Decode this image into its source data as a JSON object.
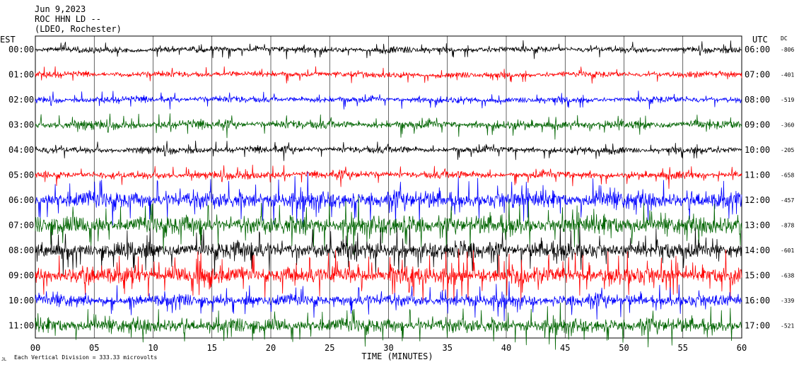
{
  "header": {
    "date": "Jun 9,2023",
    "station": "ROC HHN LD --",
    "network": "(LDEO, Rochester)"
  },
  "axes": {
    "left_label": "EST",
    "right_label": "UTC",
    "dc_label": "DC",
    "x_label": "TIME (MINUTES)",
    "x_ticks": [
      "00",
      "05",
      "10",
      "15",
      "20",
      "25",
      "30",
      "35",
      "40",
      "45",
      "50",
      "55",
      "60"
    ],
    "footer_text": "Each Vertical Division =  333.33 microvolts",
    "footer_mark": "JL"
  },
  "colors": {
    "black": "#000000",
    "red": "#ff0000",
    "blue": "#0000ff",
    "green": "#006400"
  },
  "chart_data": {
    "type": "line",
    "title": "",
    "xlabel": "TIME (MINUTES)",
    "xlim": [
      0,
      60
    ],
    "grid": true,
    "vertical_division_microvolts": 333.33,
    "rows": [
      {
        "est": "00:00",
        "utc": "06:00",
        "dc": "-806",
        "color": "black",
        "amplitude": 0.3,
        "spikes": 0.04
      },
      {
        "est": "01:00",
        "utc": "07:00",
        "dc": "-401",
        "color": "red",
        "amplitude": 0.28,
        "spikes": 0.03
      },
      {
        "est": "02:00",
        "utc": "08:00",
        "dc": "-519",
        "color": "blue",
        "amplitude": 0.3,
        "spikes": 0.04
      },
      {
        "est": "03:00",
        "utc": "09:00",
        "dc": "-360",
        "color": "green",
        "amplitude": 0.4,
        "spikes": 0.05
      },
      {
        "est": "04:00",
        "utc": "10:00",
        "dc": "-205",
        "color": "black",
        "amplitude": 0.32,
        "spikes": 0.04
      },
      {
        "est": "05:00",
        "utc": "11:00",
        "dc": "-658",
        "color": "red",
        "amplitude": 0.35,
        "spikes": 0.05
      },
      {
        "est": "06:00",
        "utc": "12:00",
        "dc": "-457",
        "color": "blue",
        "amplitude": 0.8,
        "spikes": 0.1
      },
      {
        "est": "07:00",
        "utc": "13:00",
        "dc": "-878",
        "color": "green",
        "amplitude": 0.85,
        "spikes": 0.1
      },
      {
        "est": "08:00",
        "utc": "14:00",
        "dc": "-601",
        "color": "black",
        "amplitude": 0.8,
        "spikes": 0.08
      },
      {
        "est": "09:00",
        "utc": "15:00",
        "dc": "-638",
        "color": "red",
        "amplitude": 0.8,
        "spikes": 0.12
      },
      {
        "est": "10:00",
        "utc": "16:00",
        "dc": "-339",
        "color": "blue",
        "amplitude": 0.55,
        "spikes": 0.08
      },
      {
        "est": "11:00",
        "utc": "17:00",
        "dc": "-521",
        "color": "green",
        "amplitude": 0.65,
        "spikes": 0.1
      }
    ]
  }
}
